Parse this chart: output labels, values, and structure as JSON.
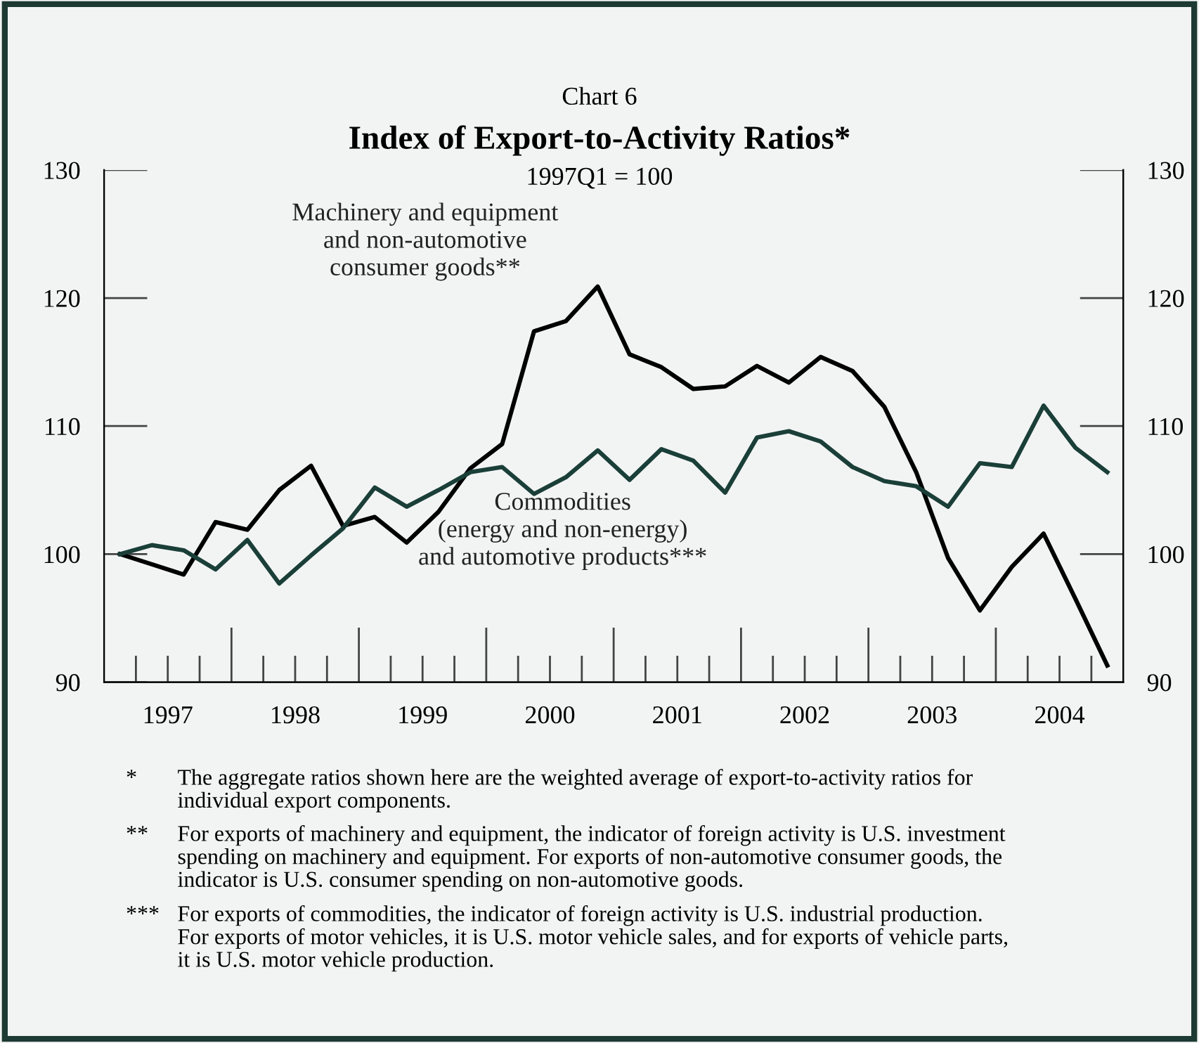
{
  "chart_data": {
    "type": "line",
    "title": "Index of Export-to-Activity Ratios*",
    "subtitle": "1997Q1 = 100",
    "x": [
      1997.125,
      1997.375,
      1997.625,
      1997.875,
      1998.125,
      1998.375,
      1998.625,
      1998.875,
      1999.125,
      1999.375,
      1999.625,
      1999.875,
      2000.125,
      2000.375,
      2000.625,
      2000.875,
      2001.125,
      2001.375,
      2001.625,
      2001.875,
      2002.125,
      2002.375,
      2002.625,
      2002.875,
      2003.125,
      2003.375,
      2003.625,
      2003.875,
      2004.125,
      2004.375,
      2004.625,
      2004.875
    ],
    "series": [
      {
        "name": "Machinery and equipment\nand non-automotive\nconsumer goods**",
        "color": "#000000",
        "values": [
          100,
          99.2,
          98.4,
          102.5,
          101.9,
          105.0,
          106.9,
          102.2,
          102.9,
          100.9,
          103.3,
          106.7,
          108.6,
          117.4,
          118.2,
          120.9,
          115.6,
          114.6,
          112.9,
          113.1,
          114.7,
          113.4,
          115.4,
          114.3,
          111.5,
          106.4,
          99.7,
          95.6,
          99.0,
          101.6,
          96.5,
          91.3
        ]
      },
      {
        "name": "Commodities\n(energy and non-energy)\nand automotive products***",
        "color": "#1a3f38",
        "values": [
          100,
          100.7,
          100.3,
          98.8,
          101.1,
          97.7,
          99.9,
          102.0,
          105.2,
          103.7,
          105.0,
          106.4,
          106.8,
          104.7,
          106.0,
          108.1,
          105.8,
          108.2,
          107.3,
          104.8,
          109.1,
          109.6,
          108.8,
          106.8,
          105.7,
          105.3,
          103.7,
          107.1,
          106.8,
          111.6,
          108.3,
          106.4
        ]
      }
    ],
    "xlim": [
      1997,
      2005
    ],
    "xticks": [
      {
        "value": 1997.5,
        "label": "1997"
      },
      {
        "value": 1998.5,
        "label": "1998"
      },
      {
        "value": 1999.5,
        "label": "1999"
      },
      {
        "value": 2000.5,
        "label": "2000"
      },
      {
        "value": 2001.5,
        "label": "2001"
      },
      {
        "value": 2002.5,
        "label": "2002"
      },
      {
        "value": 2003.5,
        "label": "2003"
      },
      {
        "value": 2004.5,
        "label": "2004"
      }
    ],
    "ylim": [
      90,
      130
    ],
    "yticks": [
      90,
      100,
      110,
      120,
      130
    ],
    "y2lim": [
      90,
      130
    ],
    "y2ticks": [
      90,
      100,
      110,
      120,
      130
    ],
    "grid": false,
    "legend": false,
    "marker": "none",
    "line_style": "solid",
    "annotations": [
      "Chart 6",
      "* The aggregate ratios shown here are the weighted average of export-to-activity ratios for\nindividual export components.",
      "** For exports of machinery and equipment, the indicator of foreign activity is U.S. investment\nspending on machinery and equipment. For exports of non-automotive consumer goods, the\nindicator is U.S. consumer spending on non-automotive goods.",
      "*** For exports of commodities, the indicator of foreign activity is U.S. industrial production.\nFor exports of motor vehicles, it is U.S. motor vehicle sales, and for exports of vehicle parts,\nit is U.S. motor vehicle production."
    ]
  }
}
